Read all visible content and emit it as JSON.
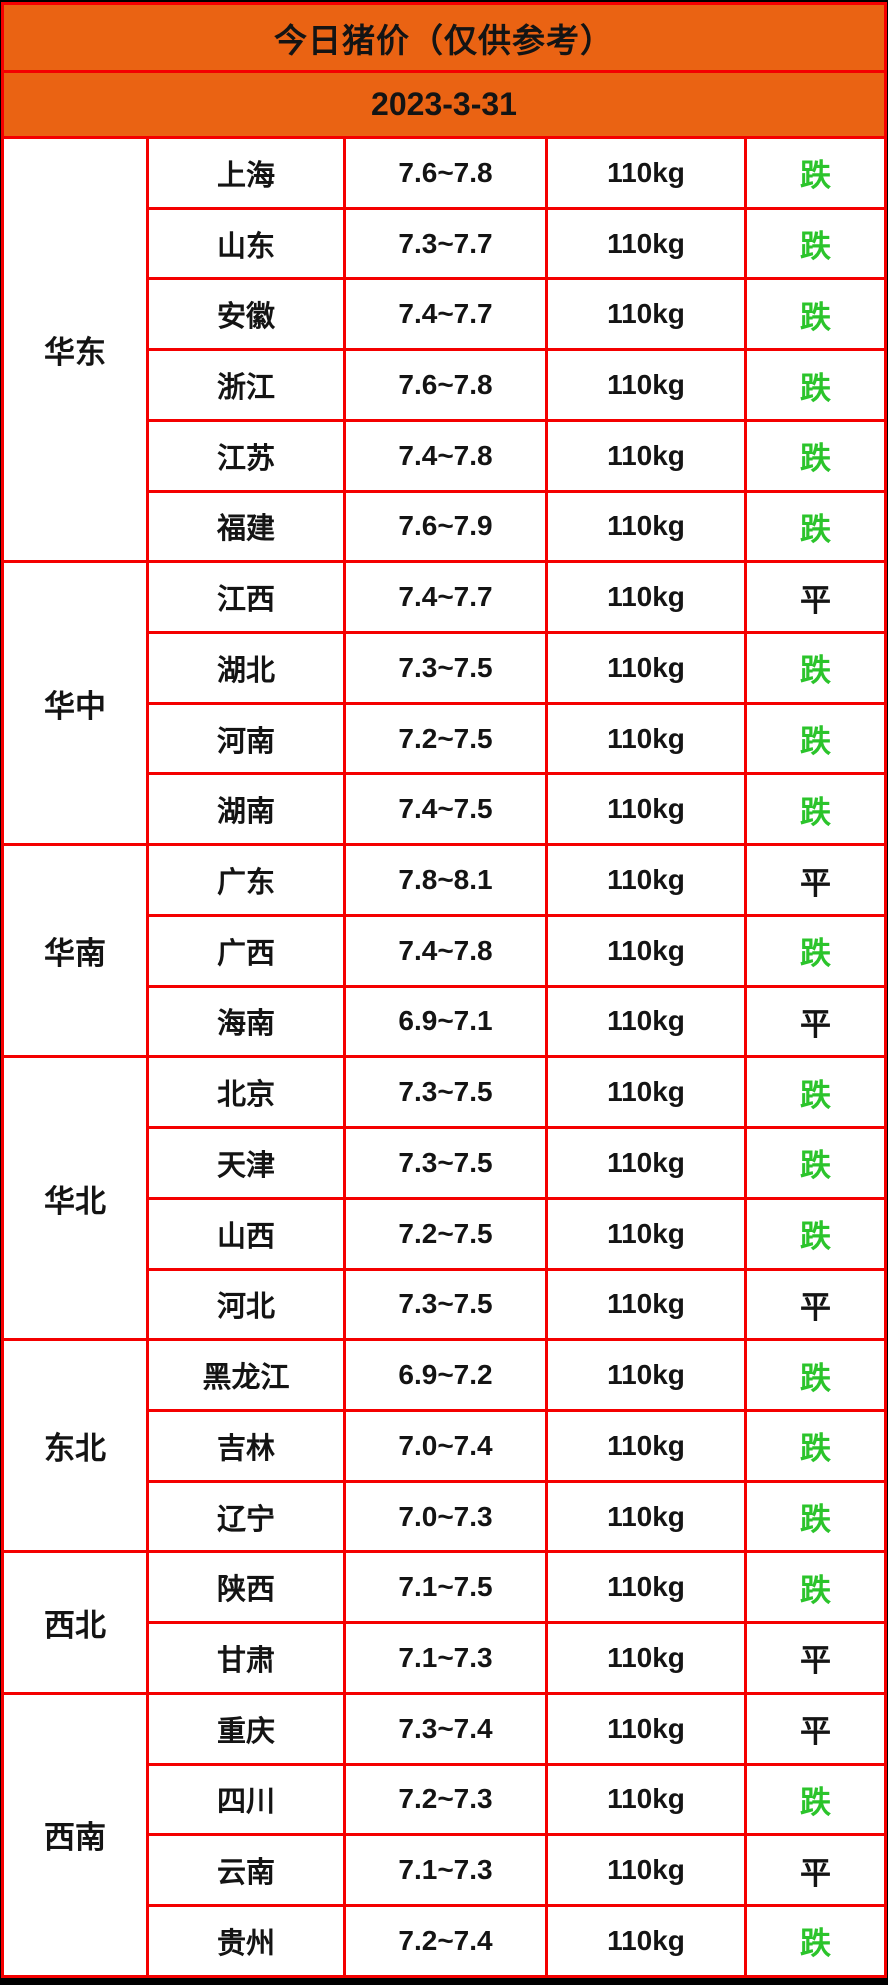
{
  "chart_data": {
    "type": "table",
    "title": "今日猪价（仅供参考）",
    "subtitle": "2023-3-31",
    "column_keys": [
      "region",
      "province",
      "price_range",
      "weight",
      "trend_status"
    ],
    "rows": [
      [
        "华东",
        "上海",
        "7.6~7.8",
        "110kg",
        "跌"
      ],
      [
        "华东",
        "山东",
        "7.3~7.7",
        "110kg",
        "跌"
      ],
      [
        "华东",
        "安徽",
        "7.4~7.7",
        "110kg",
        "跌"
      ],
      [
        "华东",
        "浙江",
        "7.6~7.8",
        "110kg",
        "跌"
      ],
      [
        "华东",
        "江苏",
        "7.4~7.8",
        "110kg",
        "跌"
      ],
      [
        "华东",
        "福建",
        "7.6~7.9",
        "110kg",
        "跌"
      ],
      [
        "华中",
        "江西",
        "7.4~7.7",
        "110kg",
        "平"
      ],
      [
        "华中",
        "湖北",
        "7.3~7.5",
        "110kg",
        "跌"
      ],
      [
        "华中",
        "河南",
        "7.2~7.5",
        "110kg",
        "跌"
      ],
      [
        "华中",
        "湖南",
        "7.4~7.5",
        "110kg",
        "跌"
      ],
      [
        "华南",
        "广东",
        "7.8~8.1",
        "110kg",
        "平"
      ],
      [
        "华南",
        "广西",
        "7.4~7.8",
        "110kg",
        "跌"
      ],
      [
        "华南",
        "海南",
        "6.9~7.1",
        "110kg",
        "平"
      ],
      [
        "华北",
        "北京",
        "7.3~7.5",
        "110kg",
        "跌"
      ],
      [
        "华北",
        "天津",
        "7.3~7.5",
        "110kg",
        "跌"
      ],
      [
        "华北",
        "山西",
        "7.2~7.5",
        "110kg",
        "跌"
      ],
      [
        "华北",
        "河北",
        "7.3~7.5",
        "110kg",
        "平"
      ],
      [
        "东北",
        "黑龙江",
        "6.9~7.2",
        "110kg",
        "跌"
      ],
      [
        "东北",
        "吉林",
        "7.0~7.4",
        "110kg",
        "跌"
      ],
      [
        "东北",
        "辽宁",
        "7.0~7.3",
        "110kg",
        "跌"
      ],
      [
        "西北",
        "陕西",
        "7.1~7.5",
        "110kg",
        "跌"
      ],
      [
        "西北",
        "甘肃",
        "7.1~7.3",
        "110kg",
        "平"
      ],
      [
        "西南",
        "重庆",
        "7.3~7.4",
        "110kg",
        "平"
      ],
      [
        "西南",
        "四川",
        "7.2~7.3",
        "110kg",
        "跌"
      ],
      [
        "西南",
        "云南",
        "7.1~7.3",
        "110kg",
        "平"
      ],
      [
        "西南",
        "贵州",
        "7.2~7.4",
        "110kg",
        "跌"
      ]
    ],
    "down_glyph": "跌",
    "flat_glyph": "平",
    "legend_position": "none",
    "grid": "on"
  },
  "colors": {
    "header_orange": "#EA6313",
    "border_red": "#F40000",
    "trend_down_green": "#2BC42B",
    "text_black": "#141414",
    "cell_white": "#FFFFFF",
    "edge_black": "#000000"
  }
}
